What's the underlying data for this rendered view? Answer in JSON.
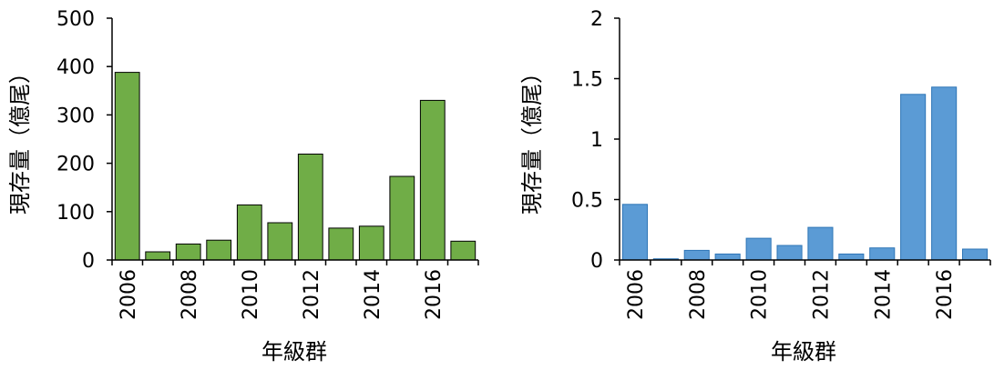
{
  "chart_data": [
    {
      "type": "bar",
      "categories": [
        "2006",
        "2007",
        "2008",
        "2009",
        "2010",
        "2011",
        "2012",
        "2013",
        "2014",
        "2015",
        "2016",
        "2017"
      ],
      "values": [
        388,
        17,
        33,
        41,
        114,
        77,
        219,
        66,
        70,
        173,
        330,
        39
      ],
      "xticks": [
        "2006",
        "2008",
        "2010",
        "2012",
        "2014",
        "2016"
      ],
      "yticks": [
        "0",
        "100",
        "200",
        "300",
        "400",
        "500"
      ],
      "ylim": [
        0,
        500
      ],
      "xlabel": "年級群",
      "ylabel": "現存量（億尾）",
      "bar_color": "#70AD47",
      "bar_edge": "#000000",
      "grid": false
    },
    {
      "type": "bar",
      "categories": [
        "2006",
        "2007",
        "2008",
        "2009",
        "2010",
        "2011",
        "2012",
        "2013",
        "2014",
        "2015",
        "2016",
        "2017"
      ],
      "values": [
        0.46,
        0.01,
        0.08,
        0.05,
        0.18,
        0.12,
        0.27,
        0.05,
        0.1,
        1.37,
        1.43,
        0.09
      ],
      "xticks": [
        "2006",
        "2008",
        "2010",
        "2012",
        "2014",
        "2016"
      ],
      "yticks": [
        "0",
        "0.5",
        "1",
        "1.5",
        "2"
      ],
      "ylim": [
        0,
        2
      ],
      "xlabel": "年級群",
      "ylabel": "現存量（億尾）",
      "bar_color": "#5B9BD5",
      "bar_edge": "#2E75B6",
      "grid": false
    }
  ]
}
